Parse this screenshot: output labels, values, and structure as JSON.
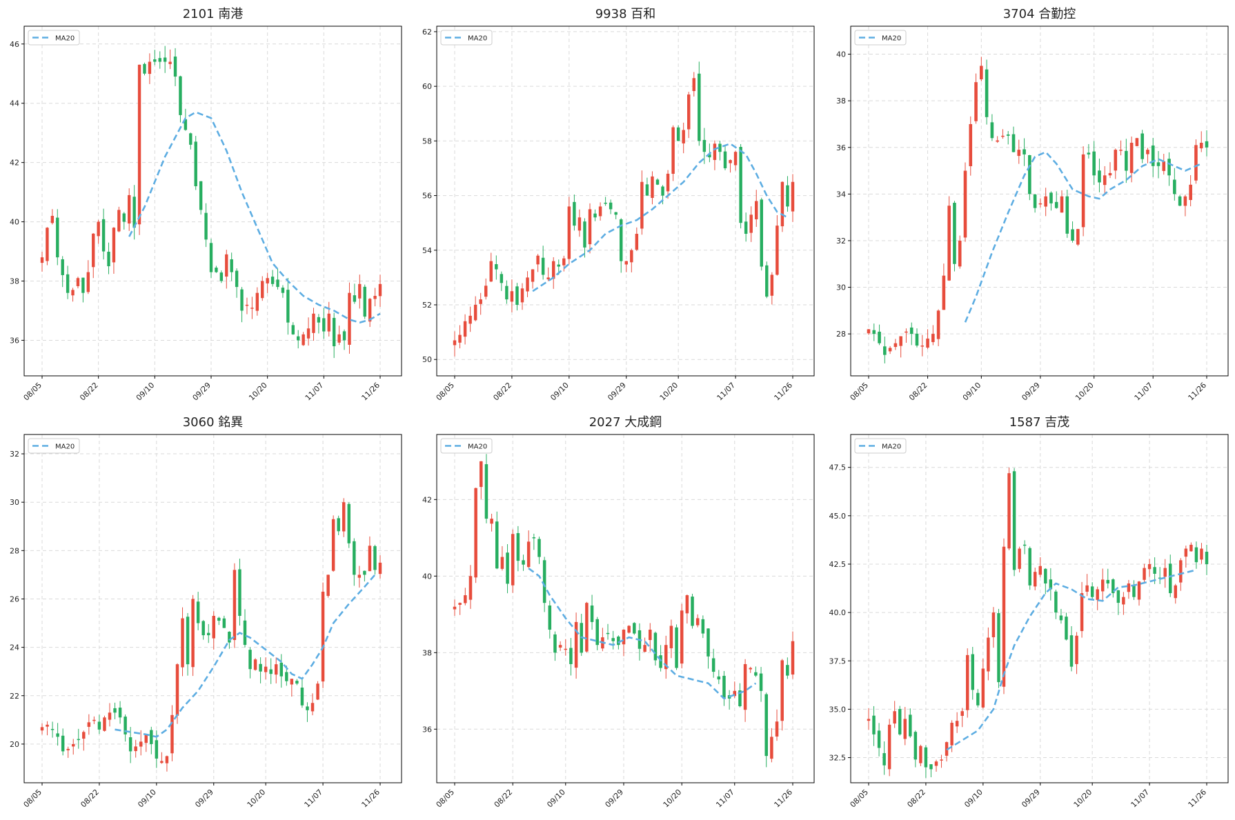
{
  "colors": {
    "up": "#e74c3c",
    "down": "#27ae60",
    "ma": "#5dade2",
    "grid": "#d9d9d9",
    "axis": "#000000"
  },
  "chart_data": [
    {
      "type": "candlestick",
      "title": "2101 南港",
      "legend": "MA20",
      "legend_position": "top-left",
      "grid": true,
      "xticks": [
        "08/05",
        "08/22",
        "09/10",
        "09/29",
        "10/20",
        "11/07",
        "11/26"
      ],
      "ylim": [
        34.8,
        46.6
      ],
      "yticks": [
        36,
        38,
        40,
        42,
        44,
        46
      ],
      "ytick_labels": [
        "36",
        "38",
        "40",
        "42",
        "44",
        "46"
      ],
      "close_path": [
        38.8,
        39.8,
        40.2,
        38.8,
        38.2,
        37.6,
        37.7,
        38.1,
        37.6,
        38.3,
        39.6,
        40.0,
        39.0,
        38.5,
        39.8,
        40.4,
        40.0,
        40.9,
        39.8,
        45.3,
        45.0,
        45.4,
        45.4,
        45.4,
        45.4,
        45.4,
        44.9,
        43.6,
        43.1,
        42.6,
        41.2,
        40.4,
        39.4,
        38.3,
        38.3,
        38.0,
        38.9,
        38.3,
        37.8,
        37.0,
        37.2,
        37.1,
        37.6,
        38.0,
        38.1,
        37.9,
        37.8,
        37.6,
        36.6,
        36.2,
        36.0,
        36.2,
        36.4,
        36.9,
        36.6,
        36.3,
        36.9,
        35.8,
        36.2,
        36.0,
        37.6,
        37.3,
        37.9,
        36.8,
        37.4,
        37.5,
        37.9
      ],
      "ma": [
        [
          17,
          39.5
        ],
        [
          20,
          40.5
        ],
        [
          24,
          42.2
        ],
        [
          28,
          43.5
        ],
        [
          30,
          43.7
        ],
        [
          33,
          43.5
        ],
        [
          36,
          42.4
        ],
        [
          39,
          41.0
        ],
        [
          42,
          39.8
        ],
        [
          45,
          38.6
        ],
        [
          48,
          38.0
        ],
        [
          51,
          37.5
        ],
        [
          54,
          37.2
        ],
        [
          57,
          37.0
        ],
        [
          60,
          36.7
        ],
        [
          62,
          36.6
        ],
        [
          64,
          36.7
        ],
        [
          66,
          36.9
        ]
      ]
    },
    {
      "type": "candlestick",
      "title": "9938 百和",
      "legend": "MA20",
      "legend_position": "top-left",
      "grid": true,
      "xticks": [
        "08/05",
        "08/22",
        "09/10",
        "09/29",
        "10/20",
        "11/07",
        "11/26"
      ],
      "ylim": [
        49.4,
        62.2
      ],
      "yticks": [
        50,
        52,
        54,
        56,
        58,
        60,
        62
      ],
      "ytick_labels": [
        "50",
        "52",
        "54",
        "56",
        "58",
        "60",
        "62"
      ],
      "close_path": [
        50.7,
        50.9,
        51.4,
        51.6,
        52.0,
        52.2,
        52.7,
        53.6,
        53.3,
        52.8,
        52.2,
        52.5,
        52.0,
        52.6,
        53.0,
        53.3,
        53.8,
        53.1,
        53.0,
        53.6,
        53.4,
        53.7,
        55.6,
        54.9,
        55.2,
        54.1,
        55.5,
        55.2,
        55.6,
        55.7,
        55.5,
        55.3,
        53.6,
        53.6,
        54.0,
        54.6,
        56.5,
        56.0,
        56.7,
        56.4,
        56.0,
        56.8,
        58.5,
        58.0,
        58.4,
        59.7,
        60.3,
        58.0,
        57.6,
        57.4,
        57.9,
        57.6,
        57.0,
        57.3,
        57.6,
        55.0,
        54.6,
        55.3,
        55.8,
        53.4,
        52.3,
        53.1,
        54.9,
        56.5,
        55.6,
        56.5
      ],
      "ma": [
        [
          15,
          52.5
        ],
        [
          19,
          53.0
        ],
        [
          22,
          53.5
        ],
        [
          26,
          54.0
        ],
        [
          29,
          54.6
        ],
        [
          32,
          54.9
        ],
        [
          35,
          55.1
        ],
        [
          38,
          55.5
        ],
        [
          41,
          56.0
        ],
        [
          44,
          56.5
        ],
        [
          47,
          57.2
        ],
        [
          50,
          57.7
        ],
        [
          53,
          57.9
        ],
        [
          56,
          57.5
        ],
        [
          58,
          56.8
        ],
        [
          60,
          56.0
        ],
        [
          62,
          55.4
        ],
        [
          64,
          55.2
        ]
      ]
    },
    {
      "type": "candlestick",
      "title": "3704 合勤控",
      "legend": "MA20",
      "legend_position": "top-left",
      "grid": true,
      "xticks": [
        "08/05",
        "08/22",
        "09/10",
        "09/29",
        "10/20",
        "11/07",
        "11/26"
      ],
      "ylim": [
        26.2,
        41.2
      ],
      "yticks": [
        28,
        30,
        32,
        34,
        36,
        38,
        40
      ],
      "ytick_labels": [
        "28",
        "30",
        "32",
        "34",
        "36",
        "38",
        "40"
      ],
      "close_path": [
        28.2,
        28.0,
        27.6,
        27.1,
        27.4,
        27.6,
        27.9,
        28.1,
        28.0,
        27.5,
        27.5,
        27.8,
        28.0,
        29.0,
        30.5,
        33.5,
        31.0,
        32.0,
        35.0,
        37.0,
        38.8,
        39.5,
        37.3,
        36.4,
        36.3,
        36.5,
        36.5,
        35.8,
        35.9,
        35.7,
        34.0,
        33.4,
        33.6,
        33.9,
        33.6,
        33.4,
        33.9,
        32.3,
        32.0,
        32.5,
        35.7,
        35.7,
        34.8,
        34.5,
        34.8,
        34.9,
        35.9,
        35.9,
        35.0,
        36.2,
        36.4,
        35.5,
        35.9,
        35.2,
        35.2,
        35.4,
        34.8,
        34.0,
        33.5,
        33.9,
        34.4,
        36.1,
        36.2,
        36.0
      ],
      "ma": [
        [
          18,
          28.5
        ],
        [
          20,
          29.6
        ],
        [
          23,
          31.5
        ],
        [
          26,
          33.2
        ],
        [
          29,
          34.8
        ],
        [
          31,
          35.6
        ],
        [
          33,
          35.8
        ],
        [
          35,
          35.3
        ],
        [
          38,
          34.2
        ],
        [
          41,
          33.9
        ],
        [
          43,
          33.8
        ],
        [
          45,
          34.2
        ],
        [
          48,
          34.6
        ],
        [
          51,
          35.2
        ],
        [
          54,
          35.5
        ],
        [
          57,
          35.2
        ],
        [
          59,
          35.0
        ],
        [
          62,
          35.3
        ]
      ]
    },
    {
      "type": "candlestick",
      "title": "3060 銘異",
      "legend": "MA20",
      "legend_position": "top-left",
      "grid": true,
      "xticks": [
        "08/05",
        "08/22",
        "09/10",
        "09/29",
        "10/20",
        "11/07",
        "11/26"
      ],
      "ylim": [
        18.4,
        32.8
      ],
      "yticks": [
        20,
        22,
        24,
        26,
        28,
        30,
        32
      ],
      "ytick_labels": [
        "20",
        "22",
        "24",
        "26",
        "28",
        "30",
        "32"
      ],
      "close_path": [
        20.7,
        20.8,
        20.6,
        20.3,
        19.7,
        19.8,
        20.0,
        20.2,
        20.5,
        20.9,
        21.0,
        20.6,
        21.1,
        21.3,
        21.3,
        21.1,
        20.4,
        19.7,
        19.9,
        20.1,
        20.4,
        20.0,
        19.4,
        19.3,
        19.5,
        21.2,
        23.3,
        25.2,
        23.3,
        26.0,
        25.0,
        24.5,
        24.5,
        25.3,
        25.1,
        24.8,
        24.2,
        27.2,
        25.3,
        24.1,
        23.1,
        23.5,
        23.0,
        23.2,
        22.9,
        23.3,
        22.8,
        22.6,
        22.7,
        22.5,
        21.6,
        21.4,
        21.7,
        22.5,
        26.3,
        27.0,
        29.3,
        28.8,
        30.0,
        28.3,
        27.0,
        27.0,
        27.0,
        28.2,
        27.2,
        27.5
      ],
      "ma": [
        [
          14,
          20.6
        ],
        [
          17,
          20.5
        ],
        [
          20,
          20.4
        ],
        [
          22,
          20.3
        ],
        [
          24,
          20.6
        ],
        [
          27,
          21.5
        ],
        [
          30,
          22.2
        ],
        [
          33,
          23.2
        ],
        [
          36,
          24.3
        ],
        [
          38,
          24.6
        ],
        [
          40,
          24.4
        ],
        [
          43,
          23.9
        ],
        [
          46,
          23.4
        ],
        [
          48,
          22.9
        ],
        [
          50,
          22.7
        ],
        [
          52,
          23.3
        ],
        [
          54,
          24.0
        ],
        [
          56,
          25.0
        ],
        [
          59,
          25.8
        ],
        [
          62,
          26.5
        ],
        [
          64,
          27.0
        ]
      ]
    },
    {
      "type": "candlestick",
      "title": "2027 大成鋼",
      "legend": "MA20",
      "legend_position": "top-left",
      "grid": true,
      "xticks": [
        "08/05",
        "08/22",
        "09/10",
        "09/29",
        "10/20",
        "11/07",
        "11/26"
      ],
      "ylim": [
        34.6,
        43.7
      ],
      "yticks": [
        36,
        38,
        40,
        42
      ],
      "ytick_labels": [
        "36",
        "38",
        "40",
        "42"
      ],
      "close_path": [
        39.2,
        39.3,
        39.5,
        40.0,
        42.3,
        43.0,
        41.5,
        41.5,
        40.2,
        40.5,
        39.8,
        41.1,
        40.4,
        40.3,
        40.9,
        41.0,
        40.5,
        39.3,
        38.6,
        38.0,
        38.2,
        38.1,
        37.7,
        38.8,
        38.0,
        39.3,
        38.8,
        38.2,
        38.4,
        38.5,
        38.3,
        38.2,
        38.6,
        38.7,
        38.5,
        38.1,
        38.2,
        38.6,
        37.8,
        37.6,
        38.2,
        38.7,
        37.6,
        39.1,
        39.5,
        38.7,
        38.9,
        38.5,
        37.9,
        37.5,
        37.3,
        36.8,
        36.8,
        37.0,
        36.6,
        37.7,
        37.6,
        37.4,
        37.0,
        35.3,
        35.8,
        36.2,
        37.8,
        37.4,
        38.3
      ],
      "ma": [
        [
          14,
          40.2
        ],
        [
          16,
          40.0
        ],
        [
          18,
          39.5
        ],
        [
          21,
          38.9
        ],
        [
          24,
          38.4
        ],
        [
          27,
          38.3
        ],
        [
          30,
          38.2
        ],
        [
          33,
          38.4
        ],
        [
          36,
          38.3
        ],
        [
          39,
          37.8
        ],
        [
          42,
          37.4
        ],
        [
          45,
          37.3
        ],
        [
          48,
          37.2
        ],
        [
          51,
          36.8
        ],
        [
          53,
          36.9
        ],
        [
          55,
          37.0
        ],
        [
          57,
          37.2
        ]
      ]
    },
    {
      "type": "candlestick",
      "title": "1587 吉茂",
      "legend": "MA20",
      "legend_position": "top-left",
      "grid": true,
      "xticks": [
        "08/05",
        "08/22",
        "09/10",
        "09/29",
        "10/20",
        "11/07",
        "11/26"
      ],
      "ylim": [
        31.2,
        49.2
      ],
      "yticks": [
        32.5,
        35.0,
        37.5,
        40.0,
        42.5,
        45.0,
        47.5
      ],
      "ytick_labels": [
        "32.5",
        "35.0",
        "37.5",
        "40.0",
        "42.5",
        "45.0",
        "47.5"
      ],
      "close_path": [
        34.5,
        33.7,
        33.0,
        32.1,
        34.2,
        34.9,
        33.7,
        34.5,
        33.6,
        32.4,
        33.1,
        32.0,
        31.9,
        32.3,
        32.4,
        33.3,
        34.3,
        34.4,
        34.9,
        37.8,
        36.0,
        35.2,
        37.1,
        38.7,
        40.0,
        36.4,
        43.4,
        47.2,
        42.2,
        43.3,
        43.5,
        41.4,
        42.1,
        42.4,
        41.5,
        41.2,
        40.0,
        39.6,
        38.6,
        37.2,
        38.8,
        41.0,
        41.4,
        40.8,
        41.2,
        41.7,
        41.5,
        41.0,
        40.5,
        40.8,
        41.5,
        40.8,
        41.6,
        42.3,
        42.5,
        42.0,
        41.8,
        42.3,
        41.0,
        41.4,
        42.7,
        43.3,
        43.5,
        42.6,
        43.3,
        42.5
      ],
      "ma": [
        [
          15,
          32.9
        ],
        [
          18,
          33.4
        ],
        [
          21,
          33.9
        ],
        [
          24,
          35.0
        ],
        [
          26,
          36.8
        ],
        [
          28,
          38.3
        ],
        [
          31,
          39.8
        ],
        [
          34,
          41.0
        ],
        [
          36,
          41.5
        ],
        [
          39,
          41.2
        ],
        [
          42,
          40.7
        ],
        [
          45,
          40.6
        ],
        [
          48,
          41.3
        ],
        [
          51,
          41.4
        ],
        [
          54,
          41.6
        ],
        [
          57,
          41.8
        ],
        [
          60,
          42.0
        ],
        [
          63,
          42.2
        ]
      ]
    }
  ]
}
